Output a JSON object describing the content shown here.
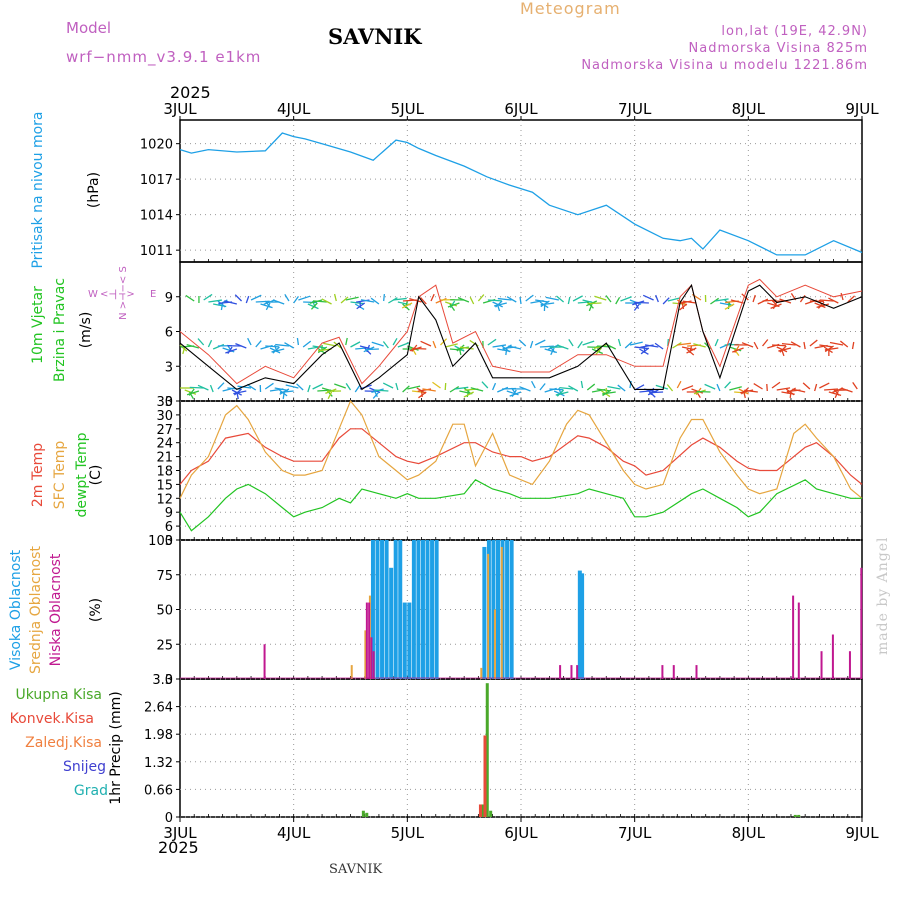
{
  "header": {
    "model_label": "Model",
    "model_name": "wrf−nmm_v3.9.1 e1km",
    "title": "SAVNIK",
    "meteogram_label": "Meteogram",
    "location": "lon,lat (19E, 42.9N)",
    "altitude": "Nadmorska Visina 825m",
    "model_altitude": "Nadmorska Visina u modelu 1221.86m",
    "year_top": "2025"
  },
  "footer": {
    "year_bottom": "2025",
    "station": "SAVNIK"
  },
  "watermark": "made by Angel",
  "colors": {
    "pressure": "#1ea0e6",
    "wind_speed": "#000000",
    "wind_gust": "#e84a3a",
    "temp_2m": "#e84a3a",
    "temp_sfc": "#e6a640",
    "dewpoint": "#22c422",
    "cloud_high": "#1ea0e6",
    "cloud_mid": "#e6a640",
    "cloud_low": "#c01890",
    "total_precip": "#4aa82a",
    "conv_precip": "#e84a3a",
    "ice_precip": "#f08040",
    "snow": "#4040d0",
    "grad": "#20b0b0"
  },
  "chart_data": [
    {
      "type": "line",
      "name_left": "Pritisak na nivou mora",
      "ylabel": "(hPa)",
      "x_ticks": [
        "3JUL",
        "4JUL",
        "5JUL",
        "6JUL",
        "7JUL",
        "8JUL",
        "9JUL"
      ],
      "yticks": [
        "1020",
        "1017",
        "1014",
        "1011"
      ],
      "ylim": [
        1010,
        1022
      ],
      "series": [
        {
          "key": "pressure",
          "x": [
            0,
            0.1,
            0.25,
            0.5,
            0.75,
            0.9,
            1,
            1.1,
            1.25,
            1.5,
            1.7,
            1.9,
            2.0,
            2.1,
            2.25,
            2.5,
            2.7,
            2.9,
            3.1,
            3.25,
            3.5,
            3.75,
            4.0,
            4.25,
            4.4,
            4.5,
            4.6,
            4.75,
            5.0,
            5.25,
            5.5,
            5.75,
            6.0
          ],
          "values": [
            1019.5,
            1019.2,
            1019.5,
            1019.3,
            1019.4,
            1020.9,
            1020.6,
            1020.4,
            1020.0,
            1019.3,
            1018.6,
            1020.3,
            1020.1,
            1019.6,
            1019.0,
            1018.1,
            1017.2,
            1016.5,
            1015.9,
            1014.8,
            1014.0,
            1014.8,
            1013.2,
            1012.0,
            1011.8,
            1012.0,
            1011.1,
            1012.7,
            1011.8,
            1010.6,
            1010.6,
            1011.8,
            1010.8
          ]
        }
      ]
    },
    {
      "type": "line",
      "name_left_1": "10m Vjetar",
      "name_left_2": "Brzina i Pravac",
      "ylabel": "(m/s)",
      "compass": {
        "n": "N",
        "w": "W",
        "e": "E",
        "s": "S"
      },
      "yticks": [
        "9",
        "6",
        "3",
        "0"
      ],
      "ylim": [
        0,
        12
      ],
      "series": [
        {
          "key": "wind_speed",
          "x": [
            0,
            0.25,
            0.5,
            0.75,
            1.0,
            1.25,
            1.4,
            1.6,
            1.75,
            2.0,
            2.1,
            2.25,
            2.4,
            2.6,
            2.75,
            3.0,
            3.25,
            3.5,
            3.75,
            4.0,
            4.25,
            4.4,
            4.5,
            4.6,
            4.75,
            5.0,
            5.1,
            5.25,
            5.5,
            5.75,
            6.0
          ],
          "values": [
            5,
            3,
            1,
            2,
            1.5,
            4,
            5,
            1,
            2,
            4,
            9,
            7,
            3,
            5,
            2,
            2,
            2,
            3,
            5,
            1,
            1,
            8.5,
            10,
            6,
            2,
            9.5,
            10,
            8.5,
            9,
            8,
            9
          ]
        },
        {
          "key": "wind_gust",
          "x": [
            0,
            0.25,
            0.5,
            0.75,
            1.0,
            1.25,
            1.4,
            1.6,
            1.75,
            2.0,
            2.1,
            2.25,
            2.4,
            2.6,
            2.75,
            3.0,
            3.25,
            3.5,
            3.75,
            4.0,
            4.25,
            4.4,
            4.5,
            4.6,
            4.75,
            5.0,
            5.1,
            5.25,
            5.5,
            5.75,
            6.0
          ],
          "values": [
            6,
            4,
            1.5,
            3,
            2,
            5,
            5.5,
            1.5,
            3,
            6,
            9,
            10,
            5,
            6,
            3,
            2.5,
            2.5,
            4,
            4,
            3,
            3,
            9,
            10,
            6,
            3,
            10,
            10.5,
            9,
            10,
            9,
            9.5
          ]
        }
      ]
    },
    {
      "type": "line",
      "name_left_1": "2m Temp",
      "name_left_2": "SFC Temp",
      "name_left_3": "dewpt Temp",
      "ylabel": "(C)",
      "yticks": [
        "33",
        "30",
        "27",
        "24",
        "21",
        "18",
        "15",
        "12",
        "9",
        "6",
        "3"
      ],
      "ylim": [
        3,
        33
      ],
      "series": [
        {
          "key": "temp_2m",
          "x": [
            0,
            0.1,
            0.25,
            0.4,
            0.6,
            0.75,
            0.9,
            1.0,
            1.1,
            1.25,
            1.4,
            1.5,
            1.6,
            1.75,
            1.9,
            2.0,
            2.1,
            2.25,
            2.5,
            2.6,
            2.75,
            2.9,
            3.0,
            3.1,
            3.25,
            3.5,
            3.6,
            3.75,
            3.9,
            4.0,
            4.1,
            4.25,
            4.5,
            4.6,
            4.75,
            4.9,
            5.0,
            5.1,
            5.25,
            5.5,
            5.6,
            5.75,
            5.9,
            6.0
          ],
          "values": [
            15,
            18,
            20,
            25,
            26,
            23,
            21,
            20,
            20,
            20,
            25,
            27,
            27,
            24,
            21,
            20,
            19.5,
            21,
            24,
            24,
            22,
            21,
            21,
            20,
            21,
            25.5,
            25,
            23,
            20,
            19,
            17,
            18,
            23.5,
            25,
            23,
            20,
            18.5,
            18,
            18,
            23,
            24,
            21,
            17,
            15
          ]
        },
        {
          "key": "temp_sfc",
          "x": [
            0,
            0.1,
            0.25,
            0.4,
            0.5,
            0.6,
            0.75,
            0.9,
            1.0,
            1.1,
            1.25,
            1.4,
            1.5,
            1.6,
            1.75,
            1.9,
            2.0,
            2.1,
            2.25,
            2.4,
            2.5,
            2.6,
            2.75,
            2.9,
            3.0,
            3.1,
            3.25,
            3.4,
            3.5,
            3.6,
            3.75,
            3.9,
            4.0,
            4.1,
            4.25,
            4.4,
            4.5,
            4.6,
            4.75,
            4.9,
            5.0,
            5.1,
            5.25,
            5.4,
            5.5,
            5.6,
            5.75,
            5.9,
            6.0
          ],
          "values": [
            12,
            17,
            21,
            30,
            32,
            29,
            22,
            18,
            17,
            17,
            18,
            27,
            33,
            30,
            21,
            18,
            16,
            17,
            20,
            28,
            28,
            19,
            26,
            17,
            16,
            15,
            20,
            28,
            31,
            30,
            24,
            18,
            15,
            14,
            15,
            25,
            29,
            29,
            22,
            17,
            14,
            13,
            14,
            26,
            28,
            25,
            21,
            14,
            12
          ]
        },
        {
          "key": "dewpoint",
          "x": [
            0,
            0.1,
            0.25,
            0.4,
            0.5,
            0.6,
            0.75,
            0.9,
            1.0,
            1.1,
            1.25,
            1.4,
            1.5,
            1.6,
            1.75,
            1.9,
            2.0,
            2.1,
            2.25,
            2.5,
            2.6,
            2.75,
            2.9,
            3.0,
            3.1,
            3.25,
            3.5,
            3.6,
            3.75,
            3.9,
            4.0,
            4.1,
            4.25,
            4.5,
            4.6,
            4.75,
            4.9,
            5.0,
            5.1,
            5.25,
            5.5,
            5.6,
            5.75,
            5.9,
            6.0
          ],
          "values": [
            9,
            5,
            8,
            12,
            14,
            15,
            13,
            10,
            8,
            9,
            10,
            12,
            11,
            14,
            13,
            12,
            13,
            12,
            12,
            13,
            16,
            14,
            13,
            12,
            12,
            12,
            13,
            14,
            13,
            12,
            8,
            8,
            9,
            13,
            14,
            12,
            10,
            8,
            9,
            13,
            16,
            14,
            13,
            12,
            12
          ]
        }
      ]
    },
    {
      "type": "bar",
      "name_left_1": "Visoka Oblacnost",
      "name_left_2": "Srednja Oblacnost",
      "name_left_3": "Niska Oblacnost",
      "ylabel": "(%)",
      "yticks": [
        "100",
        "75",
        "50",
        "25",
        "0"
      ],
      "ylim": [
        0,
        100
      ],
      "series": [
        {
          "key": "cloud_high",
          "x": [
            1.68,
            1.72,
            1.76,
            1.8,
            1.84,
            1.88,
            1.92,
            1.96,
            2.0,
            2.04,
            2.08,
            2.12,
            2.16,
            2.2,
            2.24,
            2.66,
            2.7,
            2.74,
            2.78,
            2.82,
            2.86,
            2.9,
            3.5,
            3.52
          ],
          "values": [
            100,
            100,
            100,
            100,
            80,
            100,
            100,
            55,
            55,
            100,
            100,
            100,
            100,
            100,
            100,
            95,
            100,
            100,
            100,
            100,
            100,
            100,
            78,
            76
          ]
        },
        {
          "key": "cloud_mid",
          "x": [
            1.48,
            1.6,
            1.64,
            2.62,
            2.68,
            2.74,
            2.8
          ],
          "values": [
            10,
            35,
            60,
            8,
            90,
            50,
            95
          ]
        },
        {
          "key": "cloud_low",
          "x": [
            0.7,
            1.6,
            1.62,
            1.64,
            1.66,
            3.3,
            3.4,
            3.45,
            4.2,
            4.3,
            4.5,
            5.35,
            5.4,
            5.6,
            5.7,
            5.85,
            5.95
          ],
          "values": [
            25,
            55,
            55,
            30,
            20,
            10,
            10,
            10,
            10,
            10,
            10,
            60,
            55,
            20,
            32,
            20,
            80
          ]
        }
      ]
    },
    {
      "type": "bar",
      "legend": [
        "Ukupna Kisa",
        "Konvek.Kisa",
        "Zaledj.Kisa",
        "Snijeg",
        "Grad"
      ],
      "ylabel": "1hr Precip (mm)",
      "yticks": [
        "3.3",
        "2.64",
        "1.98",
        "1.32",
        "0.66",
        "0"
      ],
      "ylim": [
        0,
        3.3
      ],
      "series": [
        {
          "key": "total_precip",
          "x": [
            1.6,
            1.63,
            2.65,
            2.69,
            2.72,
            5.4,
            5.43
          ],
          "values": [
            0.15,
            0.1,
            0.3,
            3.2,
            0.15,
            0.05,
            0.05
          ]
        },
        {
          "key": "conv_precip",
          "x": [
            2.63,
            2.67
          ],
          "values": [
            0.3,
            1.95
          ]
        }
      ]
    }
  ]
}
